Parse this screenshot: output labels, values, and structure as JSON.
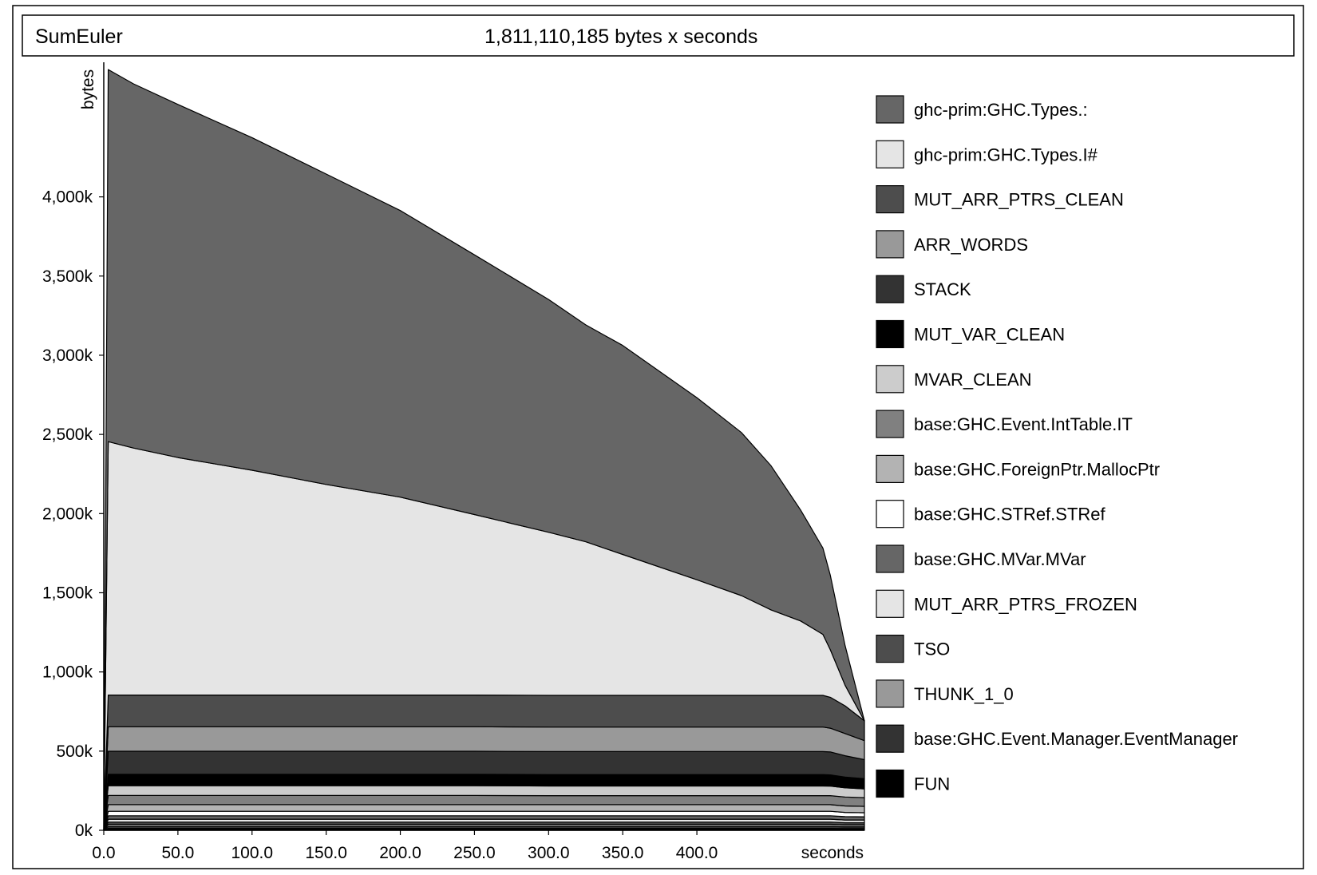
{
  "chart_data": {
    "type": "area",
    "stacked": true,
    "title": "SumEuler",
    "subtitle": "1,811,110,185 bytes x seconds",
    "xlabel": "seconds",
    "ylabel": "bytes",
    "xlim": [
      0,
      513
    ],
    "ylim": [
      0,
      4850
    ],
    "y_unit": "k bytes",
    "xticks": [
      {
        "v": 0,
        "label": "0.0"
      },
      {
        "v": 50,
        "label": "50.0"
      },
      {
        "v": 100,
        "label": "100.0"
      },
      {
        "v": 150,
        "label": "150.0"
      },
      {
        "v": 200,
        "label": "200.0"
      },
      {
        "v": 250,
        "label": "250.0"
      },
      {
        "v": 300,
        "label": "300.0"
      },
      {
        "v": 350,
        "label": "350.0"
      },
      {
        "v": 400,
        "label": "400.0"
      }
    ],
    "yticks": [
      {
        "v": 0,
        "label": "0k"
      },
      {
        "v": 500,
        "label": "500k"
      },
      {
        "v": 1000,
        "label": "1,000k"
      },
      {
        "v": 1500,
        "label": "1,500k"
      },
      {
        "v": 2000,
        "label": "2,000k"
      },
      {
        "v": 2500,
        "label": "2,500k"
      },
      {
        "v": 3000,
        "label": "3,000k"
      },
      {
        "v": 3500,
        "label": "3,500k"
      },
      {
        "v": 4000,
        "label": "4,000k"
      }
    ],
    "legend_position": "right",
    "x": [
      0,
      3,
      20,
      50,
      100,
      150,
      200,
      250,
      300,
      325,
      350,
      400,
      430,
      450,
      470,
      485,
      490,
      500,
      513
    ],
    "series": [
      {
        "name": "FUN",
        "color": "#000000",
        "values": [
          0,
          12,
          12,
          12,
          12,
          12,
          12,
          12,
          12,
          12,
          12,
          12,
          12,
          12,
          12,
          12,
          12,
          11,
          11
        ]
      },
      {
        "name": "base:GHC.Event.Manager.EventManager",
        "color": "#333333",
        "values": [
          0,
          12,
          12,
          12,
          12,
          12,
          12,
          12,
          12,
          12,
          12,
          12,
          12,
          12,
          12,
          12,
          12,
          11,
          11
        ]
      },
      {
        "name": "THUNK_1_0",
        "color": "#999999",
        "values": [
          0,
          14,
          14,
          14,
          14,
          14,
          14,
          14,
          14,
          14,
          14,
          14,
          14,
          14,
          14,
          14,
          14,
          13,
          13
        ]
      },
      {
        "name": "TSO",
        "color": "#4d4d4d",
        "values": [
          0,
          14,
          14,
          14,
          14,
          14,
          14,
          14,
          14,
          14,
          14,
          14,
          14,
          14,
          14,
          14,
          14,
          13,
          13
        ]
      },
      {
        "name": "MUT_ARR_PTRS_FROZEN",
        "color": "#e5e5e5",
        "values": [
          0,
          18,
          18,
          18,
          18,
          18,
          18,
          18,
          18,
          18,
          18,
          18,
          18,
          18,
          18,
          18,
          18,
          17,
          17
        ]
      },
      {
        "name": "base:GHC.MVar.MVar",
        "color": "#666666",
        "values": [
          0,
          22,
          22,
          22,
          22,
          22,
          22,
          22,
          22,
          22,
          22,
          22,
          22,
          22,
          22,
          22,
          22,
          21,
          20
        ]
      },
      {
        "name": "base:GHC.STRef.STRef",
        "color": "#ffffff",
        "values": [
          0,
          28,
          28,
          28,
          28,
          28,
          28,
          28,
          28,
          28,
          28,
          28,
          28,
          28,
          28,
          28,
          28,
          27,
          26
        ]
      },
      {
        "name": "base:GHC.ForeignPtr.MallocPtr",
        "color": "#b3b3b3",
        "values": [
          0,
          42,
          42,
          42,
          42,
          42,
          42,
          42,
          42,
          42,
          42,
          42,
          42,
          42,
          42,
          42,
          42,
          41,
          40
        ]
      },
      {
        "name": "base:GHC.Event.IntTable.IT",
        "color": "#808080",
        "values": [
          0,
          58,
          58,
          58,
          58,
          58,
          58,
          58,
          57,
          57,
          57,
          57,
          57,
          57,
          57,
          57,
          57,
          56,
          55
        ]
      },
      {
        "name": "MVAR_CLEAN",
        "color": "#cccccc",
        "values": [
          0,
          62,
          62,
          62,
          62,
          62,
          62,
          62,
          61,
          61,
          61,
          61,
          61,
          61,
          61,
          61,
          60,
          58,
          55
        ]
      },
      {
        "name": "MUT_VAR_CLEAN",
        "color": "#000000",
        "values": [
          0,
          72,
          72,
          72,
          72,
          72,
          72,
          72,
          72,
          72,
          72,
          72,
          72,
          72,
          72,
          72,
          71,
          68,
          65
        ]
      },
      {
        "name": "STACK",
        "color": "#333333",
        "values": [
          0,
          145,
          145,
          145,
          145,
          145,
          145,
          145,
          145,
          145,
          145,
          145,
          145,
          145,
          145,
          145,
          145,
          135,
          120
        ]
      },
      {
        "name": "ARR_WORDS",
        "color": "#999999",
        "values": [
          0,
          155,
          155,
          155,
          155,
          155,
          155,
          155,
          155,
          155,
          155,
          155,
          155,
          155,
          155,
          155,
          150,
          140,
          120
        ]
      },
      {
        "name": "MUT_ARR_PTRS_CLEAN",
        "color": "#4d4d4d",
        "values": [
          0,
          200,
          200,
          200,
          200,
          200,
          200,
          200,
          200,
          200,
          200,
          200,
          200,
          200,
          200,
          200,
          195,
          175,
          125
        ]
      },
      {
        "name": "ghc-prim:GHC.Types.I#",
        "color": "#e5e5e5",
        "values": [
          0,
          1600,
          1560,
          1500,
          1420,
          1330,
          1250,
          1140,
          1030,
          970,
          890,
          730,
          630,
          540,
          470,
          385,
          300,
          130,
          0
        ]
      },
      {
        "name": "ghc-prim:GHC.Types.:",
        "color": "#666666",
        "values": [
          0,
          2350,
          2300,
          2230,
          2100,
          1960,
          1810,
          1640,
          1470,
          1370,
          1320,
          1150,
          1030,
          910,
          700,
          545,
          470,
          250,
          0
        ]
      }
    ]
  }
}
